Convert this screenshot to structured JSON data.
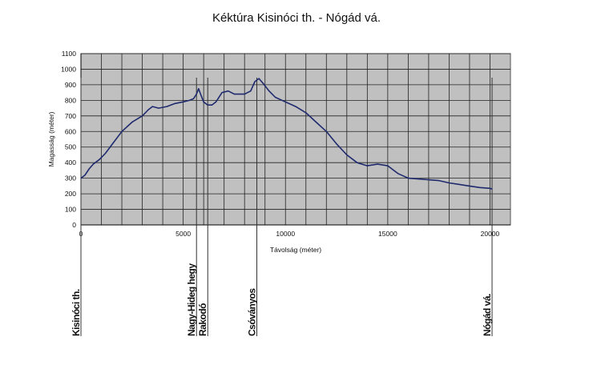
{
  "chart_data": {
    "type": "line",
    "title": "Kéktúra Kisinóci th. - Nógád vá.",
    "xlabel": "Távolság (méter)",
    "ylabel": "Magasság (méter)",
    "xlim": [
      0,
      21000
    ],
    "ylim": [
      0,
      1100
    ],
    "grid": true,
    "plot_background": "#c0c0c0",
    "line_color": "#1f2a6e",
    "x_ticks": [
      0,
      5000,
      10000,
      15000,
      20000
    ],
    "y_ticks": [
      0,
      100,
      200,
      300,
      400,
      500,
      600,
      700,
      800,
      900,
      1000,
      1100
    ],
    "series": [
      {
        "x": [
          0,
          200,
          400,
          600,
          900,
          1200,
          1600,
          2000,
          2500,
          3000,
          3300,
          3500,
          3800,
          4200,
          4600,
          5000,
          5300,
          5500,
          5650,
          5750,
          5850,
          6000,
          6200,
          6400,
          6600,
          6900,
          7200,
          7500,
          8000,
          8300,
          8500,
          8700,
          8900,
          9200,
          9500,
          10000,
          10500,
          11000,
          11500,
          12000,
          12500,
          13000,
          13500,
          14000,
          14500,
          15000,
          15500,
          16000,
          16500,
          17000,
          17500,
          18000,
          18500,
          19000,
          19500,
          20000,
          20100
        ],
        "y": [
          300,
          320,
          360,
          390,
          420,
          460,
          530,
          600,
          660,
          700,
          740,
          760,
          750,
          760,
          780,
          790,
          800,
          810,
          840,
          875,
          840,
          790,
          770,
          770,
          790,
          850,
          860,
          840,
          840,
          860,
          920,
          940,
          910,
          860,
          820,
          790,
          760,
          720,
          660,
          600,
          520,
          450,
          400,
          380,
          390,
          380,
          330,
          300,
          295,
          290,
          285,
          270,
          260,
          250,
          240,
          235,
          230
        ]
      }
    ],
    "waypoints": [
      {
        "label": "Kisinóci th.",
        "x": 0
      },
      {
        "label": "Nagy-Hideg hegy",
        "x": 5650
      },
      {
        "label": "Rakodó",
        "x": 6200
      },
      {
        "label": "Csóványos",
        "x": 8600
      },
      {
        "label": "Nógád vá.",
        "x": 20100
      }
    ]
  }
}
